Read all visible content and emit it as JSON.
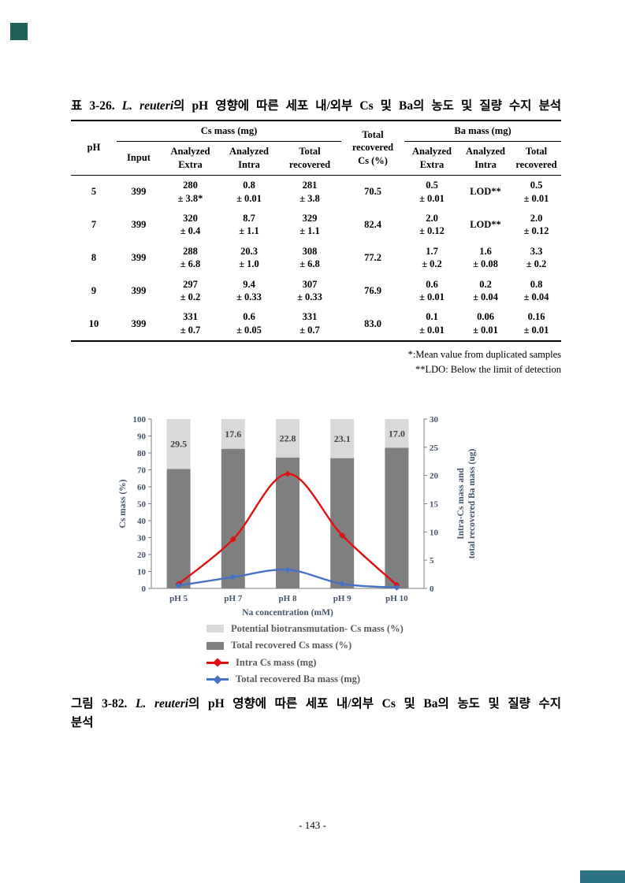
{
  "document": {
    "page_number": "- 143 -"
  },
  "decorations": {
    "corner_square_color": "#1e5f58",
    "footer_bar_color": "#2d7286"
  },
  "table_section": {
    "title": {
      "prefix": "표 3-26. ",
      "species": "L. reuteri",
      "suffix": "의 pH 영향에 따른 세포 내/외부 Cs 및 Ba의 농도 및 질량 수지 분석"
    },
    "headers": {
      "ph": "pH",
      "cs_group": "Cs mass (mg)",
      "ba_group": "Ba mass (mg)",
      "input": "Input",
      "analyzed_extra": "Analyzed\nExtra",
      "analyzed_intra": "Analyzed\nIntra",
      "total_recovered": "Total\nrecovered",
      "total_recovered_cs": "Total\nrecovered\nCs (%)"
    },
    "rows": [
      {
        "ph": "5",
        "input": "399",
        "cs_extra": "280\n± 3.8*",
        "cs_intra": "0.8\n± 0.01",
        "cs_total": "281\n± 3.8",
        "cs_pct": "70.5",
        "ba_extra": "0.5\n± 0.01",
        "ba_intra": "LOD**",
        "ba_total": "0.5\n± 0.01"
      },
      {
        "ph": "7",
        "input": "399",
        "cs_extra": "320\n± 0.4",
        "cs_intra": "8.7\n± 1.1",
        "cs_total": "329\n± 1.1",
        "cs_pct": "82.4",
        "ba_extra": "2.0\n± 0.12",
        "ba_intra": "LOD**",
        "ba_total": "2.0\n± 0.12"
      },
      {
        "ph": "8",
        "input": "399",
        "cs_extra": "288\n± 6.8",
        "cs_intra": "20.3\n± 1.0",
        "cs_total": "308\n± 6.8",
        "cs_pct": "77.2",
        "ba_extra": "1.7\n± 0.2",
        "ba_intra": "1.6\n± 0.08",
        "ba_total": "3.3\n± 0.2"
      },
      {
        "ph": "9",
        "input": "399",
        "cs_extra": "297\n± 0.2",
        "cs_intra": "9.4\n± 0.33",
        "cs_total": "307\n± 0.33",
        "cs_pct": "76.9",
        "ba_extra": "0.6\n± 0.01",
        "ba_intra": "0.2\n± 0.04",
        "ba_total": "0.8\n± 0.04"
      },
      {
        "ph": "10",
        "input": "399",
        "cs_extra": "331\n± 0.7",
        "cs_intra": "0.6\n± 0.05",
        "cs_total": "331\n± 0.7",
        "cs_pct": "83.0",
        "ba_extra": "0.1\n± 0.01",
        "ba_intra": "0.06\n± 0.01",
        "ba_total": "0.16\n± 0.01"
      }
    ],
    "footnotes": {
      "first": "*:Mean value from duplicated samples",
      "second": "**LDO: Below the limit of detection"
    }
  },
  "chart_data": {
    "type": "bar",
    "subtype": "stacked-bars-with-smoothed-lines",
    "categories": [
      "pH 5",
      "pH 7",
      "pH 8",
      "pH 9",
      "pH 10"
    ],
    "xlabel": "Na concentration (mM)",
    "ylabel_left": "Cs mass (%)",
    "ylabel_right": "Intra-Cs mass and\ntotal recovered Ba mass (ug)",
    "ylim_left": [
      0,
      100
    ],
    "ytick_step_left": 10,
    "ylim_right": [
      0,
      30
    ],
    "ytick_step_right": 5,
    "grid": false,
    "legend_position": "bottom",
    "series": [
      {
        "name": "Potential biotransmutation- Cs mass (%)",
        "type": "bar",
        "stack": "top",
        "axis": "left",
        "color": "#d9d9d9",
        "values": [
          29.5,
          17.6,
          22.8,
          23.1,
          17.0
        ],
        "data_labels": [
          "29.5",
          "17.6",
          "22.8",
          "23.1",
          "17.0"
        ]
      },
      {
        "name": "Total recovered Cs mass (%)",
        "type": "bar",
        "stack": "bottom",
        "axis": "left",
        "color": "#7f7f7f",
        "values": [
          70.5,
          82.4,
          77.2,
          76.9,
          83.0
        ]
      },
      {
        "name": "Intra Cs mass (mg)",
        "type": "line",
        "axis": "right",
        "color": "#e01010",
        "values": [
          0.8,
          8.7,
          20.3,
          9.4,
          0.6
        ]
      },
      {
        "name": "Total recovered Ba mass (mg)",
        "type": "line",
        "axis": "right",
        "color": "#4472c4",
        "values": [
          0.5,
          2.0,
          3.3,
          0.8,
          0.16
        ]
      }
    ]
  },
  "figure": {
    "caption": {
      "line1_prefix": "그림 3-82. ",
      "species": "L. reuteri",
      "line1_suffix": "의 pH 영향에 따른 세포 내/외부 Cs 및 Ba의 농도 및 질량 수지",
      "line2": "분석"
    }
  }
}
